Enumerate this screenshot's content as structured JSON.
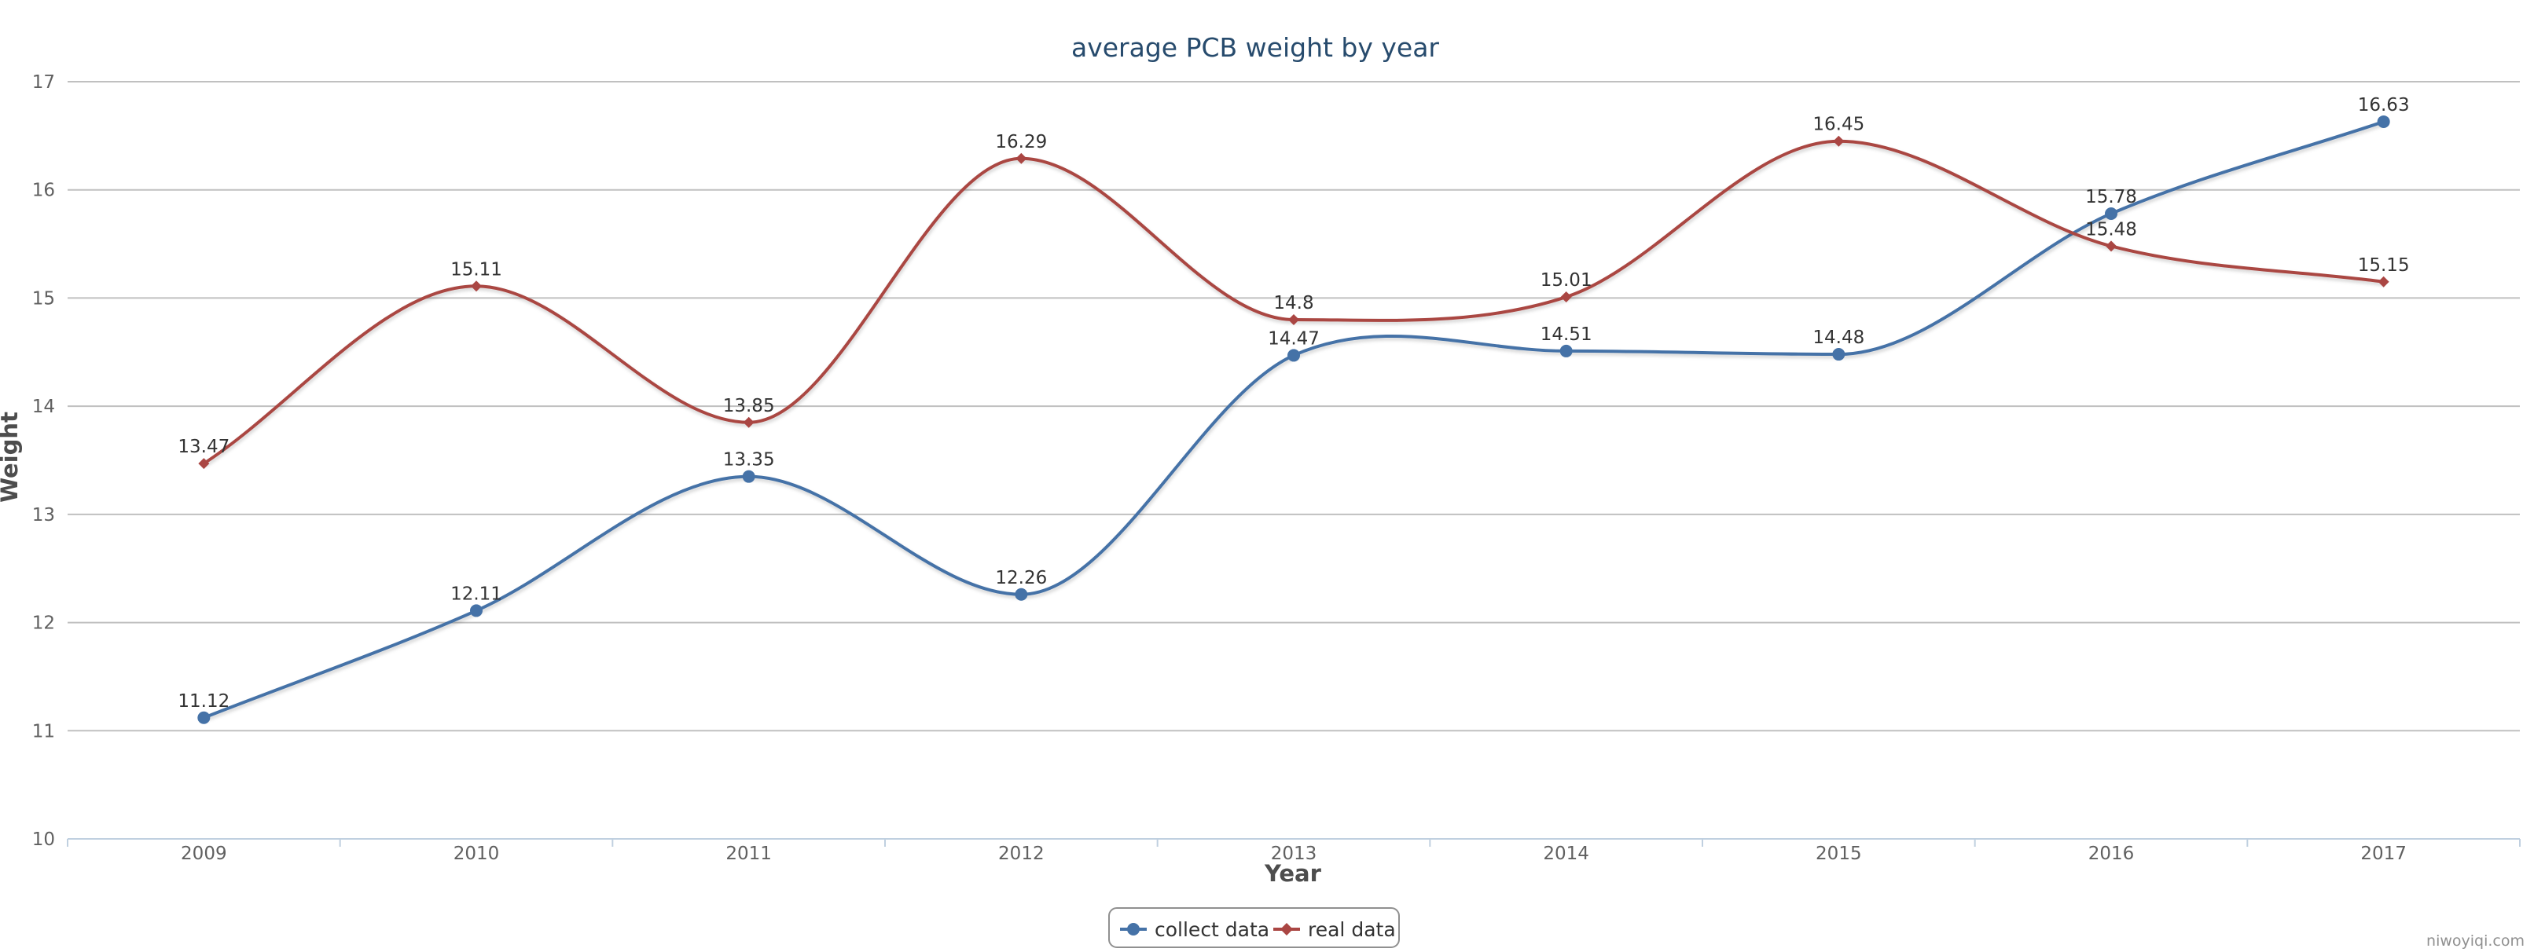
{
  "chart_data": {
    "type": "line",
    "title": "average PCB weight by year",
    "xlabel": "Year",
    "ylabel": "Weight",
    "categories": [
      "2009",
      "2010",
      "2011",
      "2012",
      "2013",
      "2014",
      "2015",
      "2016",
      "2017"
    ],
    "ylim": [
      10,
      17
    ],
    "yticks": [
      10,
      11,
      12,
      13,
      14,
      15,
      16,
      17
    ],
    "grid": true,
    "legend_position": "bottom-center",
    "series": [
      {
        "name": "collect data",
        "color": "#4572a7",
        "marker": "circle",
        "values": [
          11.12,
          12.11,
          13.35,
          12.26,
          14.47,
          14.51,
          14.48,
          15.78,
          16.63
        ],
        "labels": [
          "11.12",
          "12.11",
          "13.35",
          "12.26",
          "14.47",
          "14.51",
          "14.48",
          "15.78",
          "16.63"
        ]
      },
      {
        "name": "real data",
        "color": "#aa4643",
        "marker": "diamond",
        "values": [
          13.47,
          15.11,
          13.85,
          16.29,
          14.8,
          15.01,
          16.45,
          15.48,
          15.15
        ],
        "labels": [
          "13.47",
          "15.11",
          "13.85",
          "16.29",
          "14.8",
          "15.01",
          "16.45",
          "15.48",
          "15.15"
        ]
      }
    ],
    "credit": "niwoyiqi.com"
  }
}
